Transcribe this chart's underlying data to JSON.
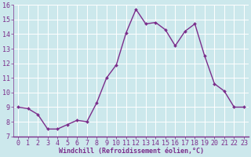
{
  "x": [
    0,
    1,
    2,
    3,
    4,
    5,
    6,
    7,
    8,
    9,
    10,
    11,
    12,
    13,
    14,
    15,
    16,
    17,
    18,
    19,
    20,
    21,
    22,
    23
  ],
  "y": [
    9.0,
    8.9,
    8.5,
    7.5,
    7.5,
    7.8,
    8.1,
    8.0,
    9.3,
    11.0,
    11.9,
    14.1,
    15.7,
    14.7,
    14.8,
    14.3,
    13.2,
    14.2,
    14.7,
    12.5,
    10.6,
    10.1,
    9.0,
    9.0
  ],
  "line_color": "#7b2d8b",
  "marker": "D",
  "marker_size": 2.0,
  "bg_color": "#cce8ec",
  "grid_color": "#ffffff",
  "xlabel": "Windchill (Refroidissement éolien,°C)",
  "ylabel": "",
  "xlim": [
    -0.5,
    23.5
  ],
  "ylim": [
    7,
    16
  ],
  "xticks": [
    0,
    1,
    2,
    3,
    4,
    5,
    6,
    7,
    8,
    9,
    10,
    11,
    12,
    13,
    14,
    15,
    16,
    17,
    18,
    19,
    20,
    21,
    22,
    23
  ],
  "yticks": [
    7,
    8,
    9,
    10,
    11,
    12,
    13,
    14,
    15,
    16
  ],
  "xlabel_fontsize": 6.0,
  "tick_fontsize": 6.0,
  "line_width": 1.0,
  "text_color": "#7b2d8b"
}
